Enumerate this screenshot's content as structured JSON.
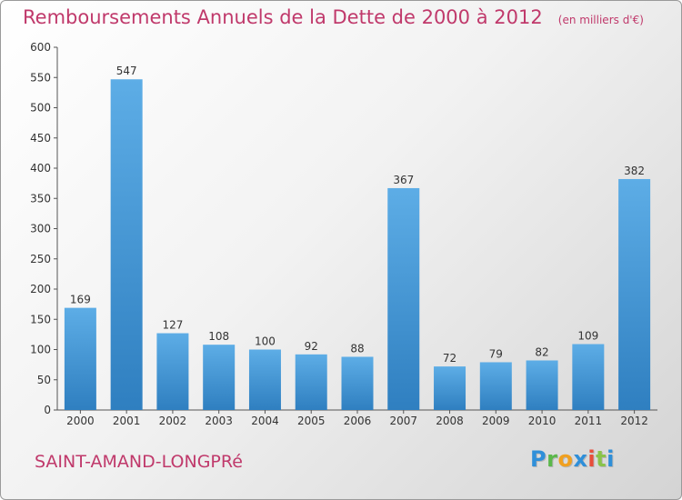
{
  "chart_data": {
    "type": "bar",
    "title": "Remboursements Annuels de la Dette de 2000 à 2012",
    "subtitle": "(en milliers d'€)",
    "categories": [
      "2000",
      "2001",
      "2002",
      "2003",
      "2004",
      "2005",
      "2006",
      "2007",
      "2008",
      "2009",
      "2010",
      "2011",
      "2012"
    ],
    "values": [
      169,
      547,
      127,
      108,
      100,
      92,
      88,
      367,
      72,
      79,
      82,
      109,
      382
    ],
    "ylim": [
      0,
      600
    ],
    "yticks": [
      0,
      50,
      100,
      150,
      200,
      250,
      300,
      350,
      400,
      450,
      500,
      550,
      600
    ],
    "xlabel": "",
    "ylabel": "",
    "grid": false,
    "bar_color": "#3f97d8",
    "bar_color_light": "#5dade6",
    "label_color": "#333333"
  },
  "commune": "SAINT-AMAND-LONGPRé",
  "brand": {
    "letters": [
      "P",
      "r",
      "o",
      "x",
      "i",
      "t",
      "i"
    ],
    "colors": [
      "#2f8fd9",
      "#5bb84b",
      "#f0a020",
      "#2f8fd9",
      "#e84e3a",
      "#8ac34a",
      "#2f8fd9"
    ]
  },
  "title_color": "#c0396b"
}
